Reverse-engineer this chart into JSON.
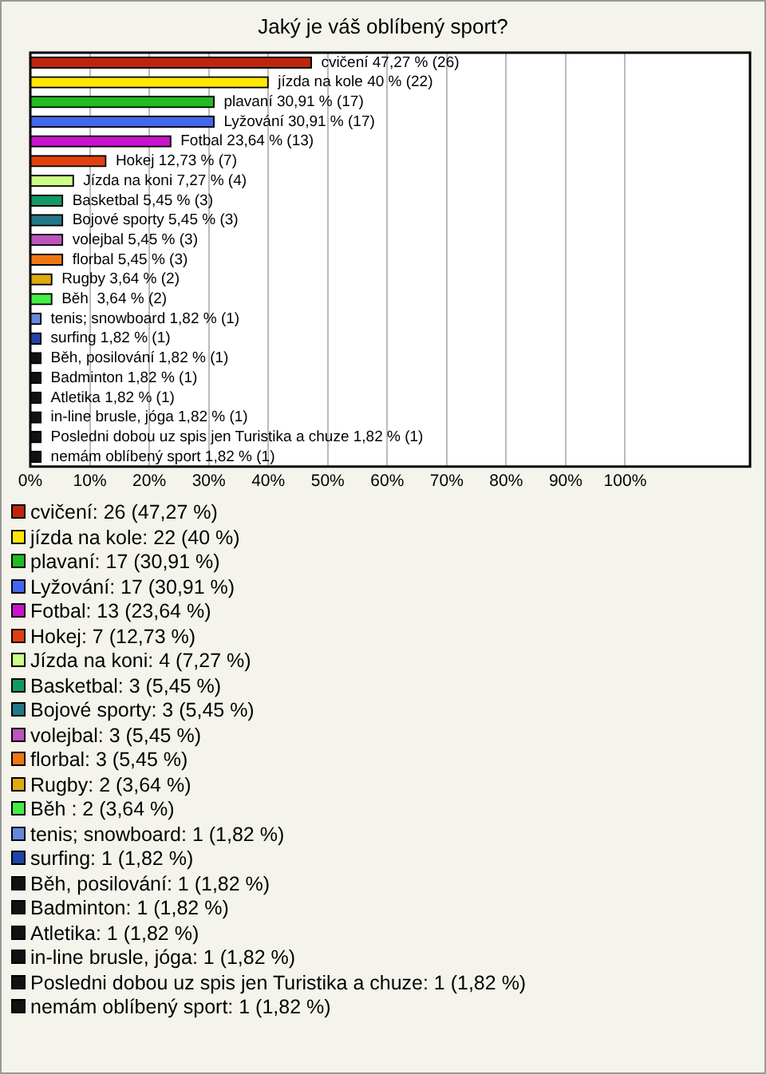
{
  "chart_data": {
    "type": "bar",
    "orientation": "horizontal",
    "title": "Jaký je váš oblíbený sport?",
    "categories": [
      null,
      null,
      null,
      null,
      null,
      null,
      null,
      null,
      null,
      null,
      null,
      null,
      null,
      null,
      null,
      null,
      null,
      null,
      null,
      null,
      null
    ],
    "values": [
      47.27,
      40,
      30.91,
      30.91,
      23.64,
      12.73,
      7.27,
      5.45,
      5.45,
      5.45,
      5.45,
      3.64,
      3.64,
      1.82,
      1.82,
      1.82,
      1.82,
      1.82,
      1.82,
      1.82,
      1.82
    ],
    "colors": [
      "#c1240c",
      "#ffe800",
      "#22bb22",
      "#4466ee",
      "#cc11cc",
      "#e04010",
      "#ccff88",
      "#119966",
      "#227788",
      "#bb55bb",
      "#ee7711",
      "#ddaa11",
      "#44ee44",
      "#6688dd",
      "#2244aa",
      "#111111",
      "#111111",
      "#111111",
      "#111111",
      "#111111",
      "#111111"
    ],
    "value_labels": [
      "cvičení 47,27 % (26)",
      "jízda na kole 40 % (22)",
      "plavaní 30,91 % (17)",
      "Lyžování 30,91 % (17)",
      "Fotbal 23,64 % (13)",
      "Hokej 12,73 % (7)",
      "Jízda na koni 7,27 % (4)",
      "Basketbal 5,45 % (3)",
      "Bojové sporty 5,45 % (3)",
      "volejbal 5,45 % (3)",
      "florbal 5,45 % (3)",
      "Rugby 3,64 % (2)",
      "Běh  3,64 % (2)",
      "tenis; snowboard 1,82 % (1)",
      "surfing 1,82 % (1)",
      "Běh, posilování 1,82 % (1)",
      "Badminton 1,82 % (1)",
      "Atletika 1,82 % (1)",
      "in-line brusle, jóga 1,82 % (1)",
      "Posledni dobou uz spis jen Turistika a chuze 1,82 % (1)",
      "nemám oblíbený sport 1,82 % (1)"
    ],
    "annotations": [
      "cvičení: 26 (47,27 %)",
      "jízda na kole: 22 (40 %)",
      "plavaní: 17 (30,91 %)",
      "Lyžování: 17 (30,91 %)",
      "Fotbal: 13 (23,64 %)",
      "Hokej: 7 (12,73 %)",
      "Jízda na koni: 4 (7,27 %)",
      "Basketbal: 3 (5,45 %)",
      "Bojové sporty: 3 (5,45 %)",
      "volejbal: 3 (5,45 %)",
      "florbal: 3 (5,45 %)",
      "Rugby: 2 (3,64 %)",
      "Běh : 2 (3,64 %)",
      "tenis; snowboard: 1 (1,82 %)",
      "surfing: 1 (1,82 %)",
      "Běh, posilování: 1 (1,82 %)",
      "Badminton: 1 (1,82 %)",
      "Atletika: 1 (1,82 %)",
      "in-line brusle, jóga: 1 (1,82 %)",
      "Posledni dobou uz spis jen Turistika a chuze: 1 (1,82 %)",
      "nemám oblíbený sport: 1 (1,82 %)"
    ],
    "xlim": [
      0,
      121
    ],
    "xticks": [
      {
        "value": 0,
        "label": "0%"
      },
      {
        "value": 10,
        "label": "10%"
      },
      {
        "value": 20,
        "label": "20%"
      },
      {
        "value": 30,
        "label": "30%"
      },
      {
        "value": 40,
        "label": "40%"
      },
      {
        "value": 50,
        "label": "50%"
      },
      {
        "value": 60,
        "label": "60%"
      },
      {
        "value": 70,
        "label": "70%"
      },
      {
        "value": 80,
        "label": "80%"
      },
      {
        "value": 90,
        "label": "90%"
      },
      {
        "value": 100,
        "label": "100%"
      }
    ],
    "grid": "x",
    "tick_labels": "x"
  }
}
